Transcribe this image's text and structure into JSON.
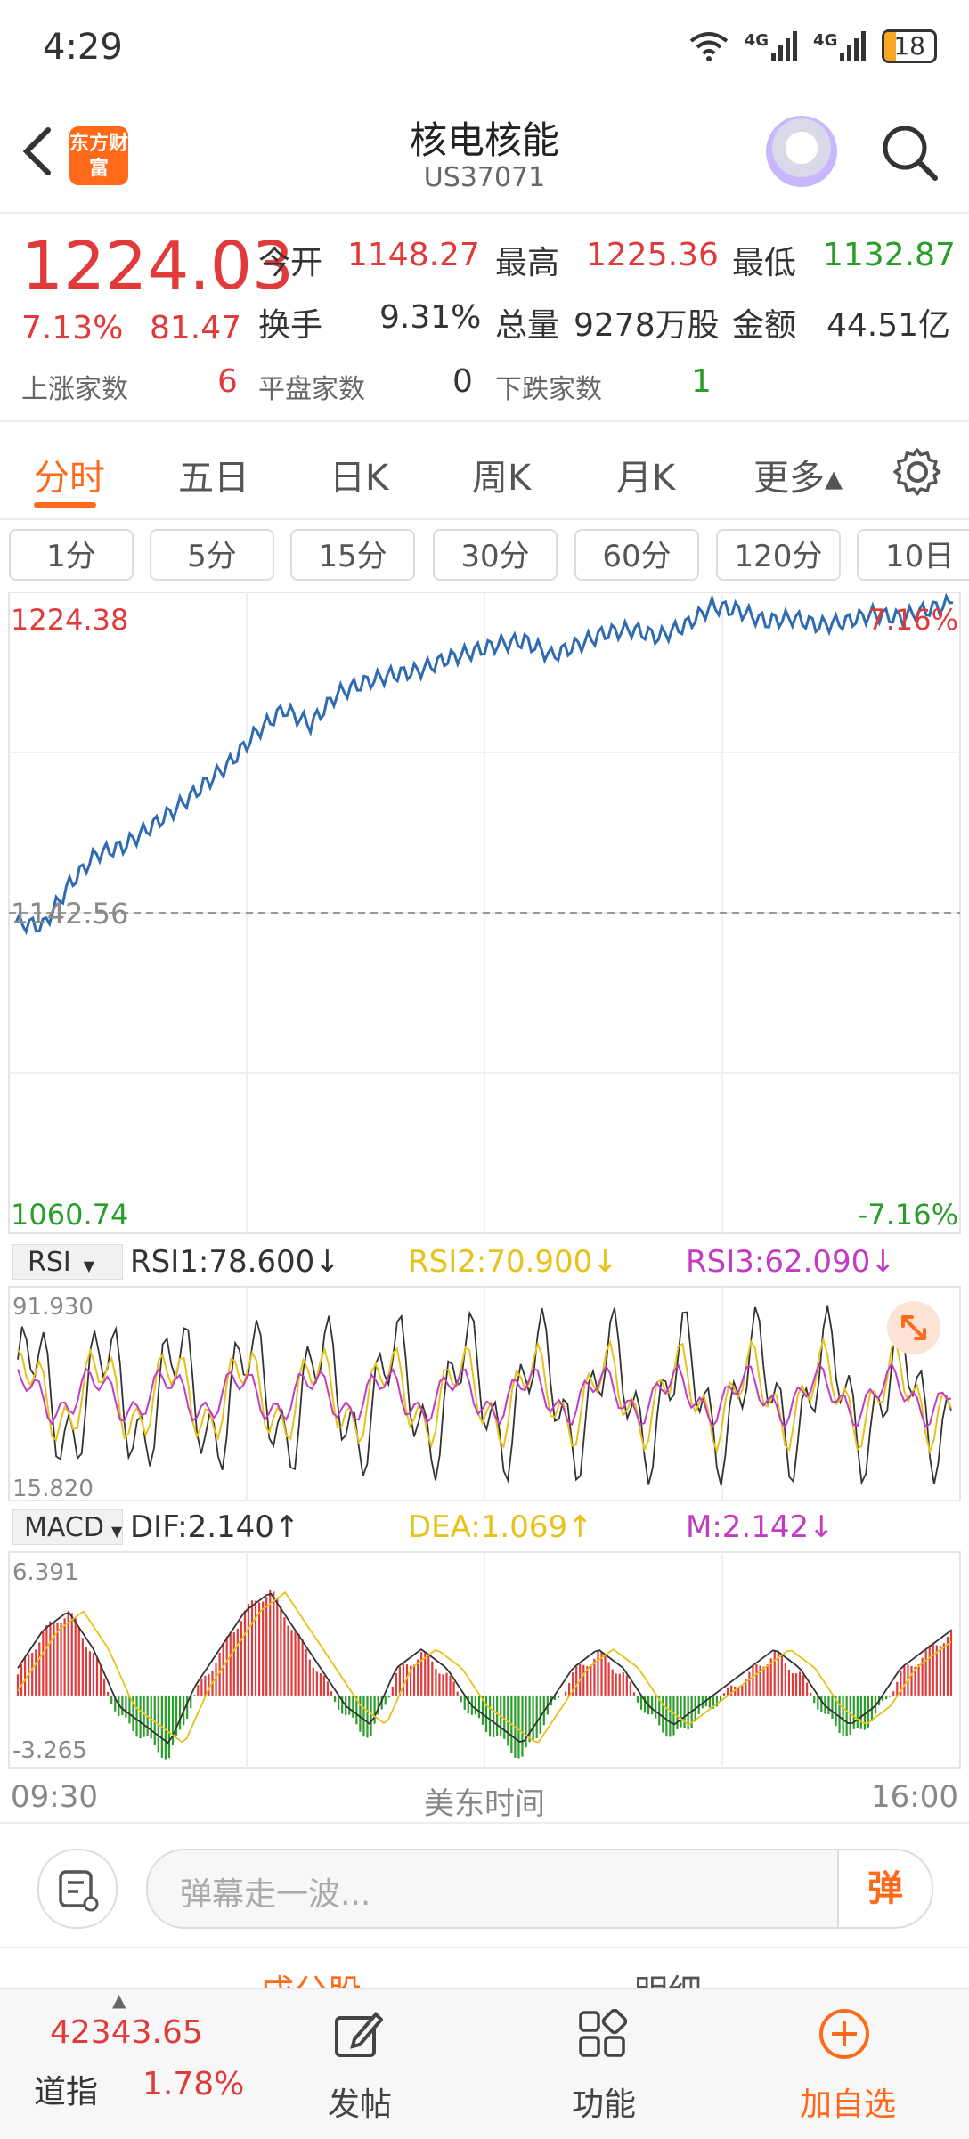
{
  "status_bar": {
    "time": "4:29",
    "signal1": "4G",
    "signal2": "4G",
    "battery": "18"
  },
  "header": {
    "title": "核电核能",
    "code": "US37071",
    "logo_text": "东方财富"
  },
  "quote": {
    "price": "1224.03",
    "change_pct": "7.13%",
    "change": "81.47",
    "open_label": "今开",
    "open": "1148.27",
    "high_label": "最高",
    "high": "1225.36",
    "low_label": "最低",
    "low": "1132.87",
    "turnover_label": "换手",
    "turnover": "9.31%",
    "volume_label": "总量",
    "volume": "9278万股",
    "amount_label": "金额",
    "amount": "44.51亿",
    "up_label": "上涨家数",
    "up_count": "6",
    "flat_label": "平盘家数",
    "flat_count": "0",
    "down_label": "下跌家数",
    "down_count": "1"
  },
  "tabs": [
    "分时",
    "五日",
    "日K",
    "周K",
    "月K",
    "更多▴"
  ],
  "intervals": [
    "1分",
    "5分",
    "15分",
    "30分",
    "60分",
    "120分",
    "10日"
  ],
  "chart_labels": {
    "top_price": "1224.38",
    "top_pct": "7.16%",
    "mid_price": "1142.56",
    "bottom_price": "1060.74",
    "bottom_pct": "-7.16%",
    "rsi_selector": "RSI",
    "rsi1": "RSI1:78.600↓",
    "rsi2": "RSI2:70.900↓",
    "rsi3": "RSI3:62.090↓",
    "rsi_top": "91.930",
    "rsi_bottom": "15.820",
    "macd_selector": "MACD",
    "dif": "DIF:2.140↑",
    "dea": "DEA:1.069↑",
    "m": "M:2.142↓",
    "macd_top": "6.391",
    "macd_bottom": "-3.265",
    "x_start": "09:30",
    "x_mid": "美东时间",
    "x_end": "16:00"
  },
  "danmu": {
    "placeholder": "弹幕走一波...",
    "send": "弹"
  },
  "partial_tabs": [
    "成分股",
    "明细"
  ],
  "tabbar": {
    "index_value": "42343.65",
    "index_name": "道指",
    "index_pct": "1.78%",
    "post": "发帖",
    "func": "功能",
    "add": "加自选"
  },
  "colors": {
    "accent": "#ff6a1a",
    "up": "#e03a3a",
    "down": "#2a9d2a",
    "price_line": "#2f6bb0",
    "rsi2": "#e6c21a",
    "rsi3": "#c23bc2"
  },
  "chart_data": {
    "type": "line",
    "xlabel": "美东时间",
    "x_range": [
      "09:30",
      "16:00"
    ],
    "price_series": {
      "name": "price",
      "ylim": [
        1060.74,
        1224.38
      ],
      "prev_close": 1142.56,
      "values": [
        1140,
        1139,
        1150,
        1158,
        1160,
        1165,
        1170,
        1176,
        1182,
        1190,
        1196,
        1192,
        1200,
        1203,
        1205,
        1206,
        1209,
        1211,
        1213,
        1214,
        1210,
        1213,
        1216,
        1217,
        1215,
        1218,
        1223,
        1222,
        1219,
        1220,
        1218,
        1219,
        1221,
        1220,
        1222,
        1224
      ]
    },
    "rsi_series": {
      "ylim": [
        15.82,
        91.93
      ],
      "RSI1": 78.6,
      "RSI2": 70.9,
      "RSI3": 62.09
    },
    "macd_series": {
      "ylim": [
        -3.265,
        6.391
      ],
      "DIF": 2.14,
      "DEA": 1.069,
      "M": 2.142,
      "histogram": [
        1,
        3,
        4,
        2,
        -1,
        -2,
        -3,
        0,
        2,
        4,
        5,
        3,
        1,
        -1,
        -2,
        1,
        2,
        1,
        -1,
        -2,
        -3,
        -1,
        1,
        2,
        1,
        -1,
        -2,
        -1,
        0,
        1,
        2,
        1,
        -1,
        -2,
        -1,
        1,
        2,
        3
      ]
    }
  }
}
